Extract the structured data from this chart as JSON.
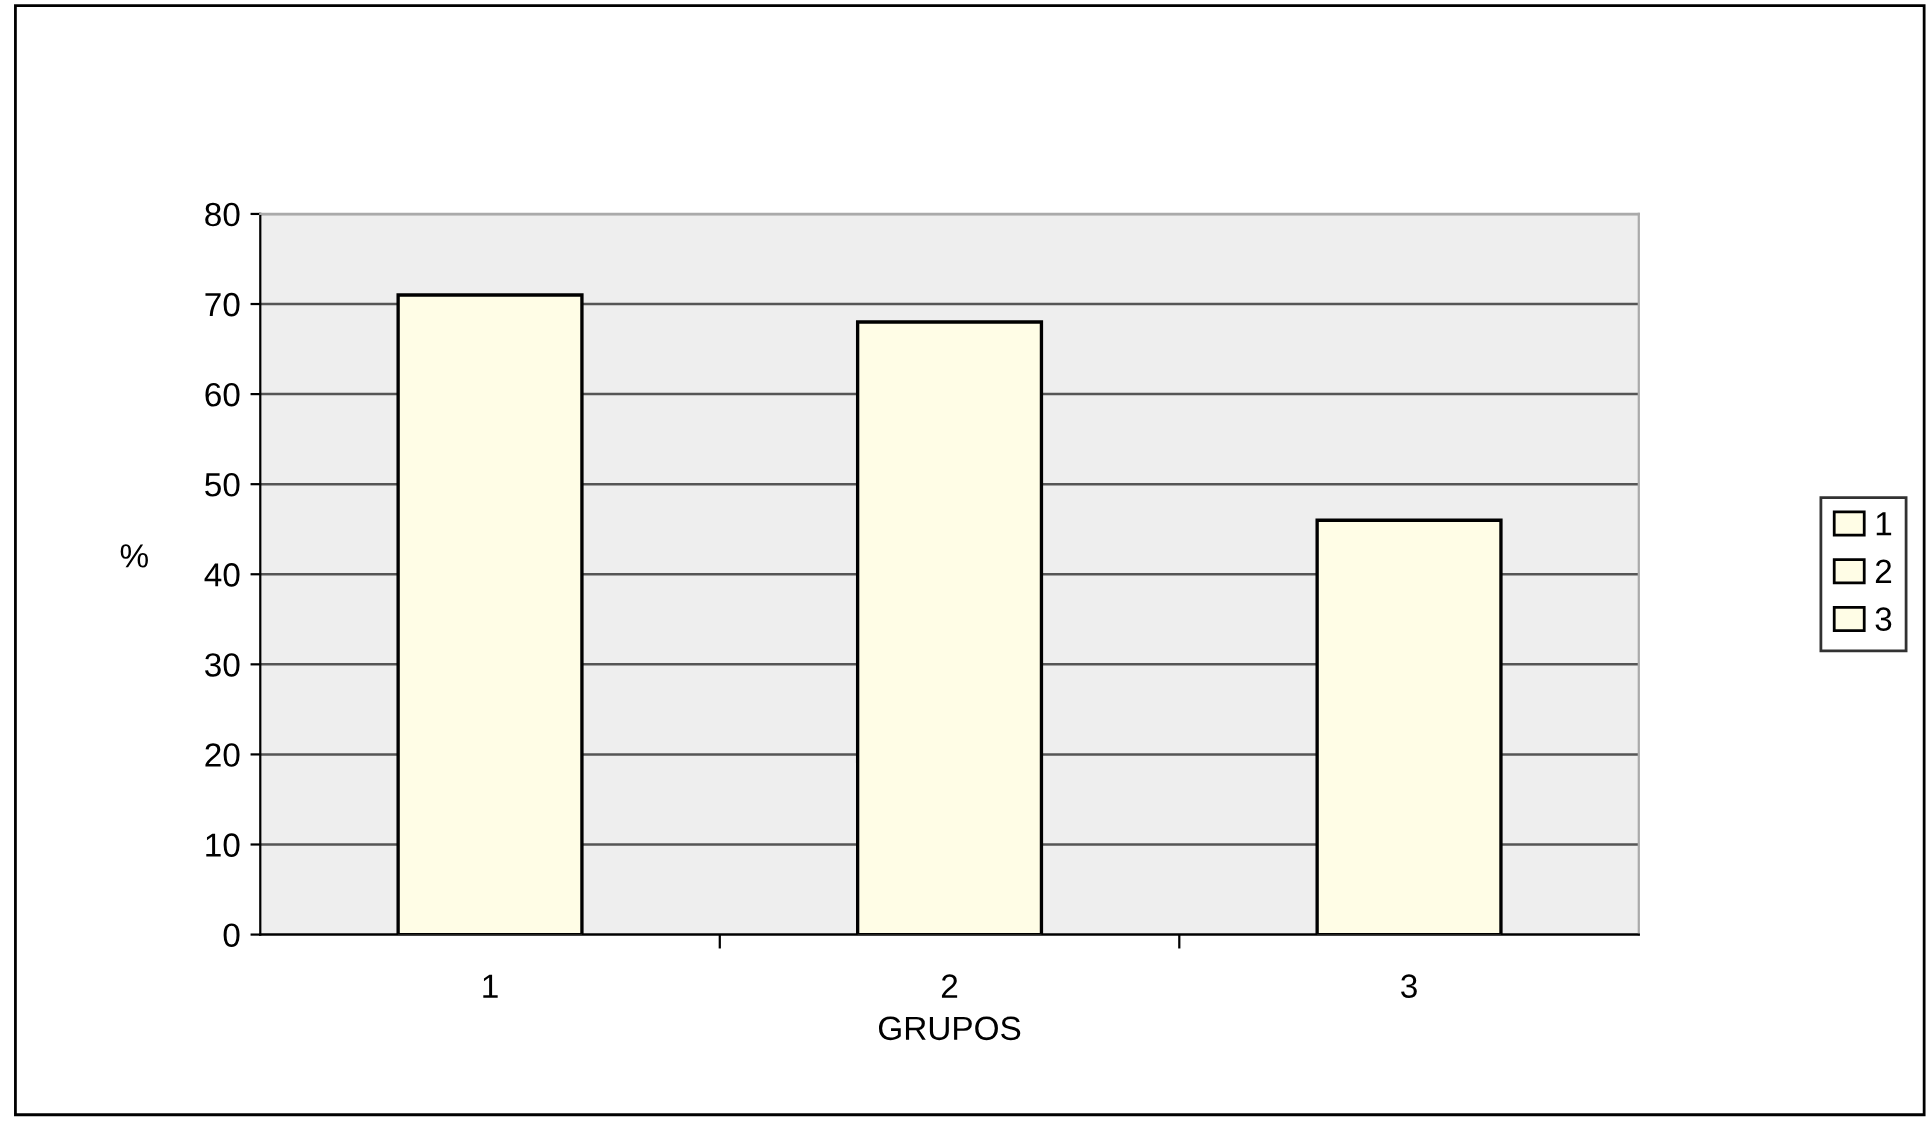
{
  "chart_data": {
    "type": "bar",
    "xlabel": "GRUPOS",
    "ylabel": "%",
    "categories": [
      "1",
      "2",
      "3"
    ],
    "series": [
      {
        "name": "1",
        "color": "#fffde6",
        "values": [
          71,
          null,
          null
        ]
      },
      {
        "name": "2",
        "color": "#fffde6",
        "values": [
          null,
          68,
          null
        ]
      },
      {
        "name": "3",
        "color": "#fffde6",
        "values": [
          null,
          null,
          46
        ]
      }
    ],
    "stacked": true,
    "ylim": [
      0,
      80
    ],
    "yticks": [
      0,
      10,
      20,
      30,
      40,
      50,
      60,
      70,
      80
    ],
    "grid": "y",
    "legend": "right"
  }
}
